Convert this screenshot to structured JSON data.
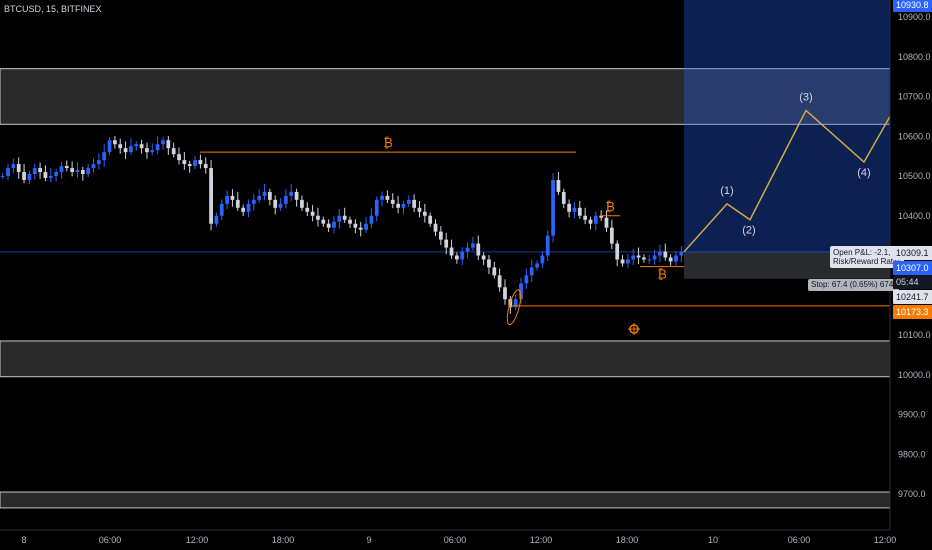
{
  "header": {
    "symbol": "BTCUSD, 15, BITFINEX"
  },
  "chart_data": {
    "type": "candlestick",
    "title": "",
    "x_ticks": [
      "8",
      "06:00",
      "12:00",
      "18:00",
      "9",
      "06:00",
      "12:00",
      "18:00",
      "10",
      "06:00",
      "12:00"
    ],
    "y_ticks": [
      9700,
      9800,
      9900,
      10000,
      10100,
      10200,
      10300,
      10400,
      10500,
      10600,
      10700,
      10800,
      10900
    ],
    "ylim": [
      9640,
      10950
    ],
    "grid": false,
    "zones": [
      {
        "low": 10630,
        "high": 10770
      },
      {
        "low": 9995,
        "high": 10085
      },
      {
        "low": 9665,
        "high": 9705
      }
    ],
    "horizontal_lines": [
      {
        "value": 10560,
        "label": "₿"
      },
      {
        "value": 10400,
        "label": "₿"
      },
      {
        "value": 10272,
        "label": "₿"
      },
      {
        "value": 10173.3,
        "label": ""
      }
    ],
    "wave_labels": [
      "(1)",
      "(2)",
      "(3)",
      "(4)"
    ],
    "wave_path": [
      10309,
      10430,
      10390,
      10665,
      10535,
      10650
    ],
    "target_zone": {
      "low": 10309.1,
      "high": 10950
    },
    "stop_zone": {
      "low": 10241.7,
      "high": 10309.1
    },
    "price_levels": {
      "top": "10930.8",
      "last": "10309.1",
      "entry": "10307.0",
      "countdown": "05:44",
      "stop": "10241.7",
      "line": "10173.3"
    },
    "position_info": {
      "line1": "Open P&L: -2.1, Q:",
      "line2": "Risk/Reward Ratio:",
      "stop_label": "Stop: 67.4 (0.65%) 674,"
    },
    "candles_close": [
      10500,
      10520,
      10530,
      10510,
      10490,
      10505,
      10520,
      10510,
      10495,
      10500,
      10510,
      10525,
      10520,
      10510,
      10515,
      10505,
      10520,
      10530,
      10540,
      10560,
      10590,
      10580,
      10570,
      10560,
      10575,
      10580,
      10570,
      10560,
      10565,
      10580,
      10590,
      10570,
      10555,
      10540,
      10530,
      10525,
      10540,
      10530,
      10520,
      10380,
      10400,
      10430,
      10450,
      10440,
      10420,
      10410,
      10430,
      10440,
      10450,
      10460,
      10440,
      10420,
      10430,
      10450,
      10460,
      10440,
      10420,
      10410,
      10400,
      10390,
      10380,
      10370,
      10385,
      10400,
      10390,
      10380,
      10370,
      10365,
      10380,
      10400,
      10440,
      10450,
      10440,
      10430,
      10420,
      10430,
      10440,
      10420,
      10410,
      10400,
      10380,
      10360,
      10340,
      10320,
      10300,
      10290,
      10310,
      10320,
      10330,
      10300,
      10290,
      10270,
      10250,
      10220,
      10190,
      10170,
      10190,
      10230,
      10250,
      10270,
      10280,
      10300,
      10350,
      10490,
      10460,
      10430,
      10410,
      10420,
      10400,
      10390,
      10380,
      10400,
      10395,
      10370,
      10330,
      10290,
      10280,
      10290,
      10300,
      10295,
      10290,
      10290,
      10300,
      10310,
      10295,
      10285,
      10300,
      10310
    ]
  }
}
